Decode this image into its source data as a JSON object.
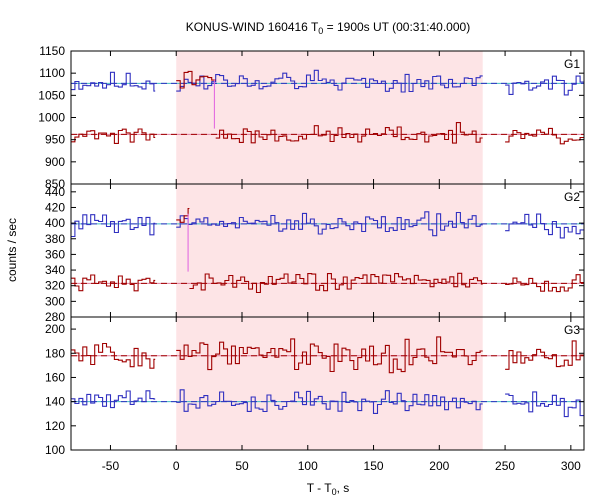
{
  "chart_data": {
    "type": "line",
    "title": {
      "prefix": "KONUS-WIND 160416 T",
      "subscript": "0",
      "suffix": " = 1900s UT (00:31:40.000)"
    },
    "xlabel": {
      "prefix": "T - T",
      "subscript": "0",
      "suffix": ", s"
    },
    "ylabel": "counts / sec",
    "xlim": [
      -80,
      310
    ],
    "xticks": [
      -50,
      0,
      50,
      100,
      150,
      200,
      250,
      300
    ],
    "shaded_interval": [
      0,
      233
    ],
    "colors": {
      "shade": "#fde4e6",
      "series_a": "#3030c0",
      "series_b": "#a00000",
      "bg_a": "#40c0c0",
      "bg_b": "#e080a0",
      "vline": "#e060e0"
    },
    "panels": [
      {
        "label": "G1",
        "ylim": [
          850,
          1150
        ],
        "yticks": [
          850,
          900,
          950,
          1000,
          1050,
          1100,
          1150
        ],
        "series": [
          {
            "style": "a",
            "segments": [
              {
                "x_start": -80,
                "x_end": -16,
                "mean": 1078,
                "amp": 14,
                "seed": 11
              },
              {
                "x_start": 0,
                "x_end": 233,
                "mean": 1080,
                "amp": 14,
                "seed": 12
              },
              {
                "x_start": 250,
                "x_end": 310,
                "mean": 1075,
                "amp": 14,
                "seed": 13
              }
            ],
            "background": 1077
          },
          {
            "style": "b",
            "segments": [
              {
                "x_start": -80,
                "x_end": -16,
                "mean": 963,
                "amp": 12,
                "seed": 21
              },
              {
                "x_start": 0,
                "x_end": 30,
                "mean": 1085,
                "amp": 12,
                "seed": 22
              },
              {
                "x_start": 30,
                "x_end": 233,
                "mean": 960,
                "amp": 12,
                "seed": 23
              },
              {
                "x_start": 250,
                "x_end": 310,
                "mean": 958,
                "amp": 14,
                "seed": 24
              }
            ],
            "background": 962
          }
        ],
        "vline": {
          "x": 29,
          "from": 1085,
          "to": 975
        }
      },
      {
        "label": "G2",
        "ylim": [
          280,
          450
        ],
        "yticks": [
          280,
          300,
          320,
          340,
          360,
          380,
          400,
          420,
          440
        ],
        "series": [
          {
            "style": "a",
            "segments": [
              {
                "x_start": -80,
                "x_end": -16,
                "mean": 400,
                "amp": 9,
                "seed": 31
              },
              {
                "x_start": 0,
                "x_end": 233,
                "mean": 400,
                "amp": 9,
                "seed": 32
              },
              {
                "x_start": 250,
                "x_end": 310,
                "mean": 398,
                "amp": 8,
                "seed": 33
              }
            ],
            "background": 399
          },
          {
            "style": "b",
            "segments": [
              {
                "x_start": -80,
                "x_end": -16,
                "mean": 323,
                "amp": 6,
                "seed": 41
              },
              {
                "x_start": 0,
                "x_end": 10,
                "mean": 410,
                "amp": 6,
                "seed": 42
              },
              {
                "x_start": 10,
                "x_end": 233,
                "mean": 326,
                "amp": 7,
                "seed": 43
              },
              {
                "x_start": 250,
                "x_end": 310,
                "mean": 322,
                "amp": 7,
                "seed": 44
              }
            ],
            "background": 323
          }
        ],
        "vline": {
          "x": 9,
          "from": 412,
          "to": 338
        }
      },
      {
        "label": "G3",
        "ylim": [
          100,
          210
        ],
        "yticks": [
          100,
          120,
          140,
          160,
          180,
          200
        ],
        "series": [
          {
            "style": "b",
            "segments": [
              {
                "x_start": -80,
                "x_end": -16,
                "mean": 178,
                "amp": 7,
                "seed": 51
              },
              {
                "x_start": 0,
                "x_end": 233,
                "mean": 180,
                "amp": 8,
                "seed": 52
              },
              {
                "x_start": 250,
                "x_end": 310,
                "mean": 181,
                "amp": 8,
                "seed": 53
              }
            ],
            "background": 178
          },
          {
            "style": "a",
            "segments": [
              {
                "x_start": -80,
                "x_end": -16,
                "mean": 141,
                "amp": 5,
                "seed": 61
              },
              {
                "x_start": 0,
                "x_end": 233,
                "mean": 140,
                "amp": 5,
                "seed": 62
              },
              {
                "x_start": 250,
                "x_end": 310,
                "mean": 139,
                "amp": 6,
                "seed": 63
              }
            ],
            "background": 140
          }
        ]
      }
    ]
  }
}
